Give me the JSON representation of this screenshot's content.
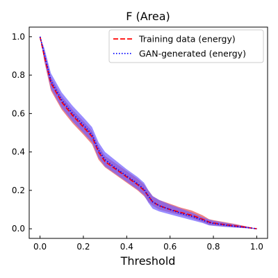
{
  "chart_data": {
    "type": "line",
    "title": "F (Area)",
    "xlabel": "Threshold",
    "ylabel": "",
    "xlim": [
      -0.05,
      1.05
    ],
    "ylim": [
      -0.05,
      1.05
    ],
    "xticks": [
      "0.0",
      "0.2",
      "0.4",
      "0.6",
      "0.8",
      "1.0"
    ],
    "yticks": [
      "0.0",
      "0.2",
      "0.4",
      "0.6",
      "0.8",
      "1.0"
    ],
    "grid": false,
    "legend": "top-right",
    "colors": {
      "training": "#ff0000",
      "gan": "#0000ff",
      "training_band": "#e85a5a",
      "gan_band": "#6f5cff"
    },
    "x": [
      0.0,
      0.02,
      0.05,
      0.1,
      0.15,
      0.2,
      0.24,
      0.27,
      0.3,
      0.35,
      0.4,
      0.45,
      0.48,
      0.5,
      0.52,
      0.55,
      0.6,
      0.65,
      0.7,
      0.75,
      0.78,
      0.8,
      0.85,
      0.9,
      0.95,
      1.0
    ],
    "series": [
      {
        "name": "Training data (energy)",
        "style": "dashed",
        "values": [
          1.0,
          0.9,
          0.76,
          0.66,
          0.59,
          0.53,
          0.48,
          0.4,
          0.35,
          0.31,
          0.27,
          0.23,
          0.2,
          0.17,
          0.14,
          0.12,
          0.1,
          0.085,
          0.07,
          0.05,
          0.035,
          0.03,
          0.022,
          0.015,
          0.008,
          0.0
        ],
        "lower": [
          1.0,
          0.87,
          0.72,
          0.62,
          0.55,
          0.49,
          0.44,
          0.36,
          0.32,
          0.28,
          0.24,
          0.2,
          0.17,
          0.14,
          0.12,
          0.1,
          0.085,
          0.07,
          0.055,
          0.035,
          0.02,
          0.018,
          0.012,
          0.008,
          0.004,
          0.0
        ],
        "upper": [
          1.0,
          0.92,
          0.79,
          0.69,
          0.62,
          0.56,
          0.51,
          0.43,
          0.38,
          0.34,
          0.3,
          0.26,
          0.23,
          0.2,
          0.17,
          0.15,
          0.13,
          0.11,
          0.095,
          0.07,
          0.05,
          0.045,
          0.035,
          0.025,
          0.013,
          0.0
        ]
      },
      {
        "name": "GAN-generated (energy)",
        "style": "dotted",
        "values": [
          1.0,
          0.91,
          0.77,
          0.67,
          0.6,
          0.54,
          0.49,
          0.41,
          0.36,
          0.315,
          0.275,
          0.235,
          0.205,
          0.17,
          0.14,
          0.12,
          0.1,
          0.08,
          0.065,
          0.045,
          0.032,
          0.028,
          0.02,
          0.013,
          0.007,
          0.0
        ],
        "lower": [
          1.0,
          0.88,
          0.73,
          0.63,
          0.56,
          0.5,
          0.45,
          0.37,
          0.325,
          0.285,
          0.245,
          0.205,
          0.175,
          0.135,
          0.105,
          0.09,
          0.075,
          0.06,
          0.045,
          0.03,
          0.018,
          0.015,
          0.01,
          0.006,
          0.003,
          0.0
        ],
        "upper": [
          1.0,
          0.94,
          0.81,
          0.71,
          0.64,
          0.58,
          0.53,
          0.45,
          0.4,
          0.355,
          0.31,
          0.27,
          0.24,
          0.2,
          0.17,
          0.15,
          0.125,
          0.105,
          0.085,
          0.06,
          0.048,
          0.042,
          0.032,
          0.022,
          0.012,
          0.0
        ]
      }
    ]
  }
}
